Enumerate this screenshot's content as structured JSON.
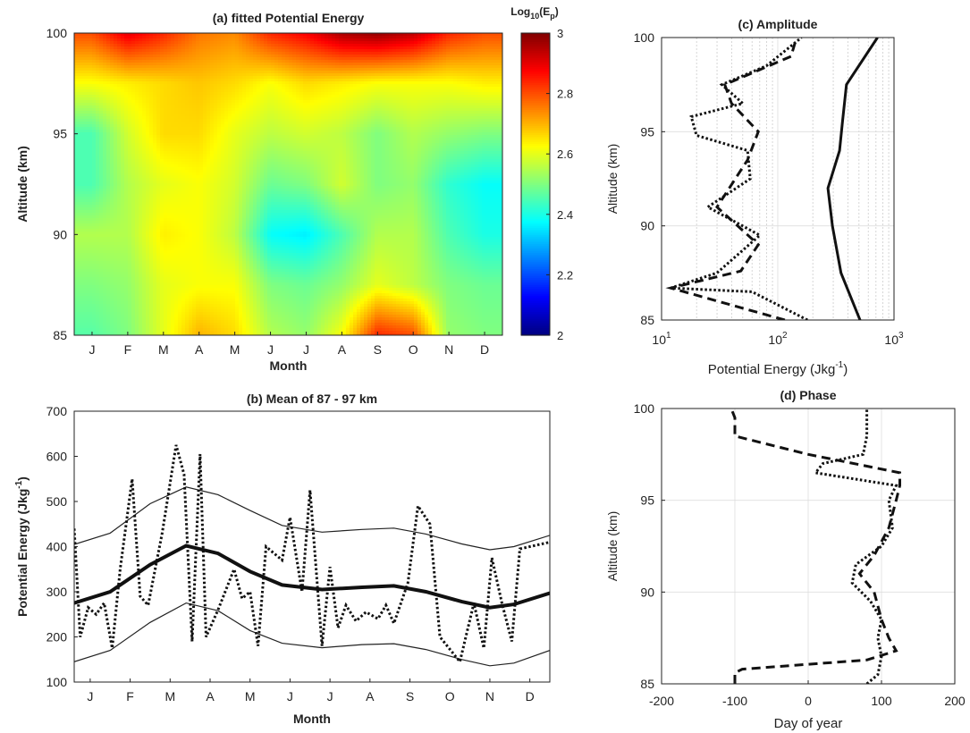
{
  "chart_data": [
    {
      "id": "a",
      "type": "heatmap",
      "title": "(a) fitted Potential Energy",
      "xlabel": "Month",
      "ylabel": "Altitude (km)",
      "x_ticks": [
        "J",
        "F",
        "M",
        "A",
        "M",
        "J",
        "J",
        "A",
        "S",
        "O",
        "N",
        "D"
      ],
      "y_ticks": [
        85,
        90,
        95,
        100
      ],
      "ylim": [
        85,
        100
      ],
      "colorbar": {
        "label_base": "Log",
        "label_sub1": "10",
        "label_mid": "(E",
        "label_sub2": "p",
        "label_end": ")",
        "ticks": [
          2,
          2.2,
          2.4,
          2.6,
          2.8,
          3
        ],
        "range": [
          2,
          3
        ]
      },
      "grid_alt": [
        85,
        87.5,
        90,
        92.5,
        95,
        97.5,
        100
      ],
      "grid_values": [
        [
          2.46,
          2.5,
          2.6,
          2.7,
          2.66,
          2.55,
          2.52,
          2.62,
          2.84,
          2.8,
          2.52,
          2.5
        ],
        [
          2.5,
          2.52,
          2.6,
          2.62,
          2.62,
          2.5,
          2.48,
          2.52,
          2.6,
          2.56,
          2.5,
          2.48
        ],
        [
          2.55,
          2.55,
          2.64,
          2.62,
          2.56,
          2.38,
          2.36,
          2.45,
          2.55,
          2.55,
          2.45,
          2.4
        ],
        [
          2.45,
          2.55,
          2.6,
          2.62,
          2.58,
          2.48,
          2.5,
          2.58,
          2.5,
          2.52,
          2.42,
          2.38
        ],
        [
          2.45,
          2.58,
          2.66,
          2.66,
          2.6,
          2.56,
          2.58,
          2.56,
          2.5,
          2.55,
          2.52,
          2.5
        ],
        [
          2.62,
          2.64,
          2.66,
          2.68,
          2.66,
          2.62,
          2.66,
          2.64,
          2.62,
          2.62,
          2.62,
          2.64
        ],
        [
          2.8,
          2.9,
          2.84,
          2.76,
          2.74,
          2.84,
          2.88,
          2.96,
          2.98,
          2.94,
          2.84,
          2.8
        ]
      ]
    },
    {
      "id": "b",
      "type": "line",
      "title": "(b) Mean of 87 - 97 km",
      "xlabel": "Month",
      "ylabel_main": "Potential Energy (Jkg",
      "ylabel_sup": "-1",
      "ylabel_end": ")",
      "x_ticks": [
        "J",
        "F",
        "M",
        "A",
        "M",
        "J",
        "J",
        "A",
        "S",
        "O",
        "N",
        "D"
      ],
      "y_ticks": [
        100,
        200,
        300,
        400,
        500,
        600,
        700
      ],
      "ylim": [
        100,
        700
      ],
      "xlim": [
        0.6,
        12.5
      ],
      "fit_mean": [
        [
          0.6,
          275
        ],
        [
          1.5,
          300
        ],
        [
          2.5,
          360
        ],
        [
          3.4,
          402
        ],
        [
          4.2,
          385
        ],
        [
          5.0,
          345
        ],
        [
          5.8,
          315
        ],
        [
          6.8,
          305
        ],
        [
          7.8,
          310
        ],
        [
          8.6,
          313
        ],
        [
          9.4,
          300
        ],
        [
          10.3,
          278
        ],
        [
          11.0,
          265
        ],
        [
          11.6,
          272
        ],
        [
          12.5,
          297
        ]
      ],
      "fit_upper": [
        [
          0.6,
          405
        ],
        [
          1.5,
          430
        ],
        [
          2.5,
          495
        ],
        [
          3.4,
          532
        ],
        [
          4.2,
          515
        ],
        [
          5.0,
          480
        ],
        [
          5.8,
          447
        ],
        [
          6.8,
          432
        ],
        [
          7.8,
          438
        ],
        [
          8.6,
          441
        ],
        [
          9.4,
          428
        ],
        [
          10.3,
          406
        ],
        [
          11.0,
          393
        ],
        [
          11.6,
          400
        ],
        [
          12.5,
          425
        ]
      ],
      "fit_lower": [
        [
          0.6,
          145
        ],
        [
          1.5,
          170
        ],
        [
          2.5,
          232
        ],
        [
          3.4,
          275
        ],
        [
          4.2,
          258
        ],
        [
          5.0,
          214
        ],
        [
          5.8,
          186
        ],
        [
          6.8,
          176
        ],
        [
          7.8,
          183
        ],
        [
          8.6,
          185
        ],
        [
          9.4,
          172
        ],
        [
          10.3,
          150
        ],
        [
          11.0,
          136
        ],
        [
          11.6,
          142
        ],
        [
          12.5,
          170
        ]
      ],
      "observed": [
        [
          0.6,
          440
        ],
        [
          0.75,
          200
        ],
        [
          0.95,
          265
        ],
        [
          1.15,
          250
        ],
        [
          1.35,
          275
        ],
        [
          1.55,
          175
        ],
        [
          1.75,
          350
        ],
        [
          2.05,
          550
        ],
        [
          2.25,
          290
        ],
        [
          2.45,
          270
        ],
        [
          2.8,
          430
        ],
        [
          3.15,
          625
        ],
        [
          3.35,
          560
        ],
        [
          3.55,
          190
        ],
        [
          3.75,
          605
        ],
        [
          3.9,
          200
        ],
        [
          4.2,
          260
        ],
        [
          4.6,
          350
        ],
        [
          4.8,
          285
        ],
        [
          5.0,
          300
        ],
        [
          5.2,
          180
        ],
        [
          5.4,
          400
        ],
        [
          5.8,
          370
        ],
        [
          6.0,
          465
        ],
        [
          6.3,
          300
        ],
        [
          6.5,
          525
        ],
        [
          6.8,
          180
        ],
        [
          7.0,
          355
        ],
        [
          7.2,
          220
        ],
        [
          7.4,
          270
        ],
        [
          7.65,
          235
        ],
        [
          7.9,
          255
        ],
        [
          8.2,
          240
        ],
        [
          8.4,
          270
        ],
        [
          8.6,
          230
        ],
        [
          8.95,
          320
        ],
        [
          9.2,
          490
        ],
        [
          9.5,
          450
        ],
        [
          9.75,
          200
        ],
        [
          10.25,
          145
        ],
        [
          10.6,
          275
        ],
        [
          10.85,
          175
        ],
        [
          11.05,
          375
        ],
        [
          11.3,
          275
        ],
        [
          11.55,
          190
        ],
        [
          11.75,
          395
        ],
        [
          12.5,
          410
        ]
      ]
    },
    {
      "id": "c",
      "type": "line",
      "scale": "log",
      "title": "(c) Amplitude",
      "xlabel_main": "Potential Energy (Jkg",
      "xlabel_sup": "-1",
      "xlabel_end": ")",
      "ylabel": "Altitude (km)",
      "x_tick_base": "10",
      "x_tick_exps": [
        "1",
        "2",
        "3"
      ],
      "x_tick_values": [
        10,
        100,
        1000
      ],
      "y_ticks": [
        85,
        90,
        95,
        100
      ],
      "xlim": [
        10,
        1000
      ],
      "ylim": [
        85,
        100
      ],
      "series": [
        {
          "style": "solid",
          "points": [
            [
              510,
              85
            ],
            [
              350,
              87.5
            ],
            [
              295,
              90
            ],
            [
              270,
              92
            ],
            [
              340,
              94
            ],
            [
              360,
              95.5
            ],
            [
              390,
              97.5
            ],
            [
              720,
              100
            ]
          ]
        },
        {
          "style": "dashed",
          "points": [
            [
              115,
              85
            ],
            [
              12,
              86.7
            ],
            [
              48,
              87.6
            ],
            [
              68,
              89
            ],
            [
              30,
              91
            ],
            [
              55,
              93.5
            ],
            [
              68,
              95
            ],
            [
              40,
              96.5
            ],
            [
              35,
              97.5
            ],
            [
              130,
              99
            ],
            [
              145,
              100
            ]
          ]
        },
        {
          "style": "dotted",
          "points": [
            [
              180,
              85
            ],
            [
              60,
              86.5
            ],
            [
              12,
              86.7
            ],
            [
              30,
              87.5
            ],
            [
              70,
              89.5
            ],
            [
              25,
              91
            ],
            [
              58,
              92.5
            ],
            [
              55,
              94
            ],
            [
              20,
              94.8
            ],
            [
              18,
              95.8
            ],
            [
              50,
              96.5
            ],
            [
              33,
              97.5
            ],
            [
              80,
              98.5
            ],
            [
              160,
              100
            ]
          ]
        }
      ]
    },
    {
      "id": "d",
      "type": "line",
      "title": "(d) Phase",
      "xlabel": "Day of year",
      "ylabel": "Altitude (km)",
      "x_ticks": [
        -200,
        -100,
        0,
        100,
        200
      ],
      "y_ticks": [
        85,
        90,
        95,
        100
      ],
      "xlim": [
        -200,
        200
      ],
      "ylim": [
        85,
        100
      ],
      "series": [
        {
          "style": "dashed",
          "points": [
            [
              -100,
              85
            ],
            [
              -100,
              85.6
            ],
            [
              -90,
              85.8
            ],
            [
              80,
              86.3
            ],
            [
              120,
              86.8
            ],
            [
              110,
              87.5
            ],
            [
              100,
              88.5
            ],
            [
              90,
              90
            ],
            [
              80,
              90.5
            ],
            [
              70,
              91
            ],
            [
              90,
              92
            ],
            [
              110,
              93.5
            ],
            [
              120,
              95
            ],
            [
              125,
              95.8
            ],
            [
              125,
              96.5
            ],
            [
              0,
              97.5
            ],
            [
              -100,
              98.5
            ],
            [
              -100,
              99.5
            ],
            [
              -105,
              100
            ]
          ]
        },
        {
          "style": "dotted",
          "points": [
            [
              80,
              85
            ],
            [
              95,
              85.5
            ],
            [
              100,
              86.5
            ],
            [
              95,
              87.5
            ],
            [
              100,
              88.5
            ],
            [
              85,
              89.5
            ],
            [
              60,
              90.5
            ],
            [
              65,
              91.5
            ],
            [
              100,
              92.5
            ],
            [
              115,
              93.5
            ],
            [
              110,
              95
            ],
            [
              120,
              95.8
            ],
            [
              10,
              96.5
            ],
            [
              20,
              97
            ],
            [
              75,
              97.5
            ],
            [
              80,
              98.5
            ],
            [
              80,
              100
            ]
          ]
        }
      ]
    }
  ]
}
